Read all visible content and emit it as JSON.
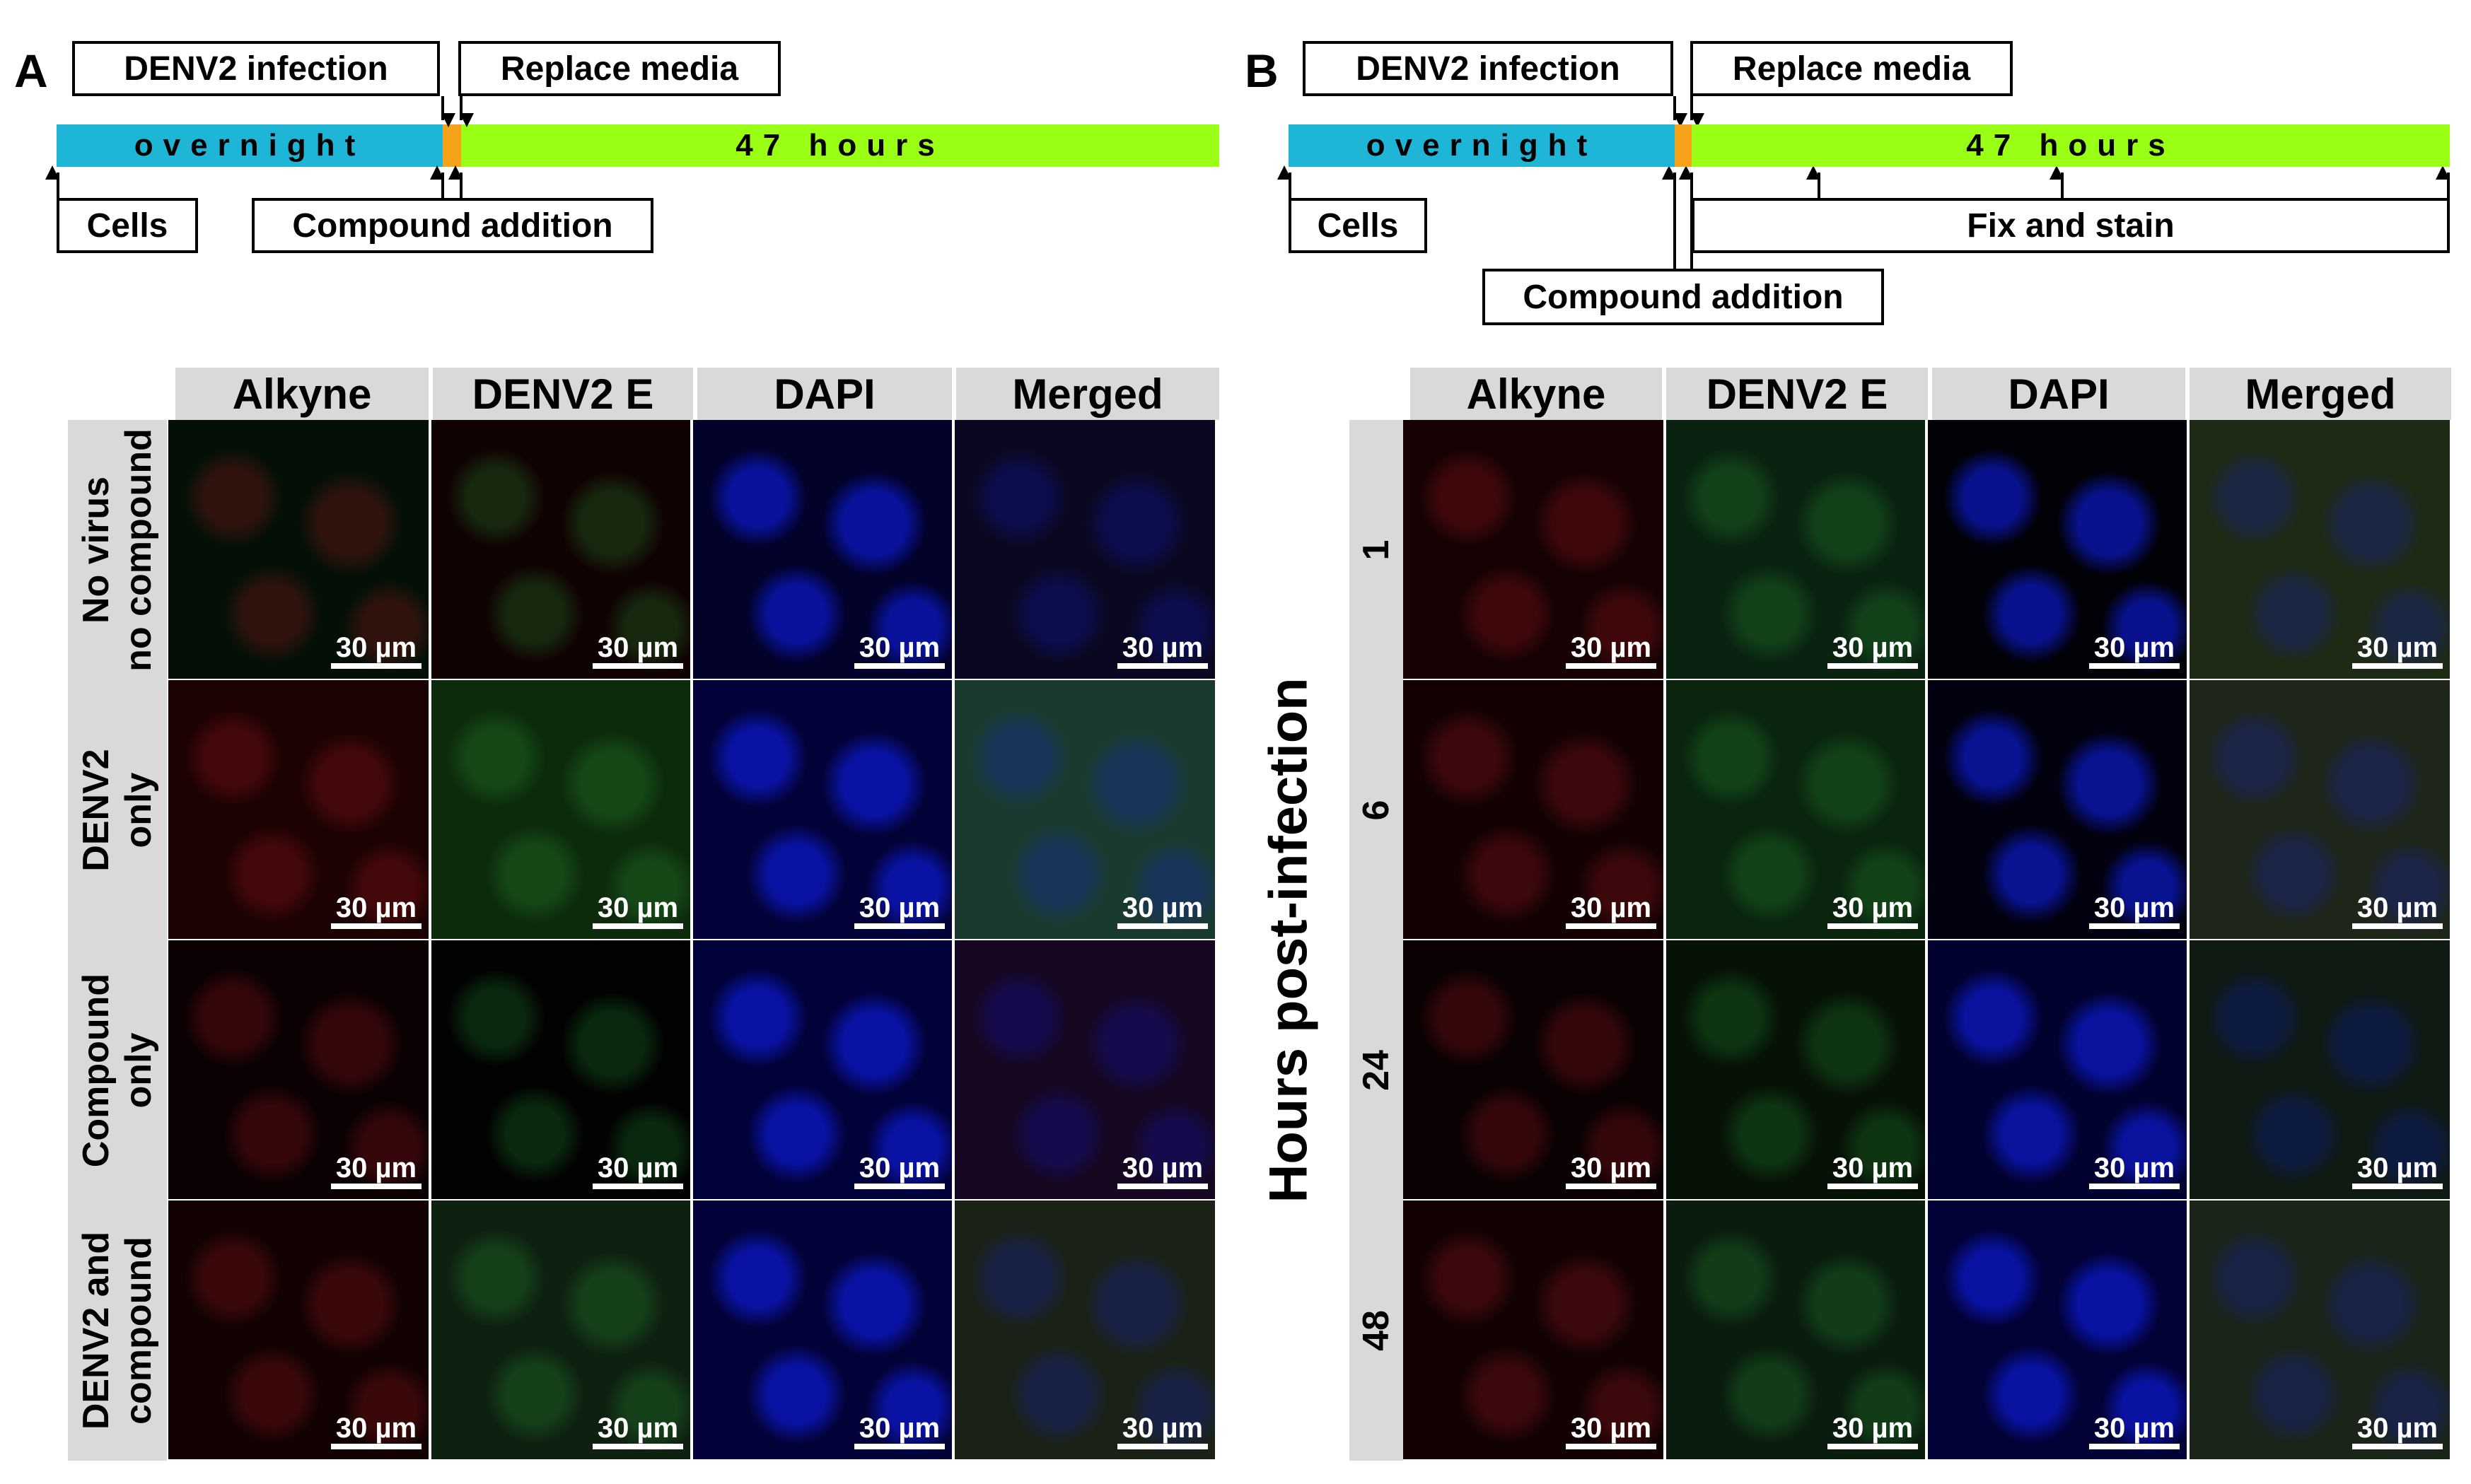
{
  "panel_a": {
    "letter": "A",
    "timeline": {
      "top_labels": [
        "DENV2 infection",
        "Replace media"
      ],
      "bottom_labels": [
        "Cells",
        "Compound addition"
      ],
      "bar_segments": [
        {
          "text": "overnight",
          "color": "#1fb5d6"
        },
        {
          "text": "",
          "color": "#f7a21b"
        },
        {
          "text": "47 hours",
          "color": "#99ff14"
        }
      ]
    },
    "column_headers": [
      "Alkyne",
      "DENV2 E",
      "DAPI",
      "Merged"
    ],
    "row_headers": [
      "No virus\nno compound",
      "DENV2\nonly",
      "Compound\nonly",
      "DENV2 and\ncompound"
    ],
    "scale_label": "30 µm"
  },
  "panel_b": {
    "letter": "B",
    "timeline": {
      "top_labels": [
        "DENV2 infection",
        "Replace media"
      ],
      "bottom_labels": [
        "Cells",
        "Fix and stain",
        "Compound addition"
      ],
      "bar_segments": [
        {
          "text": "overnight",
          "color": "#1fb5d6"
        },
        {
          "text": "",
          "color": "#f7a21b"
        },
        {
          "text": "47 hours",
          "color": "#99ff14"
        }
      ]
    },
    "column_headers": [
      "Alkyne",
      "DENV2 E",
      "DAPI",
      "Merged"
    ],
    "row_axis_label": "Hours post-infection",
    "row_headers": [
      "1",
      "6",
      "24",
      "48"
    ],
    "scale_label": "30 µm"
  },
  "colors": {
    "alkyne": "#e0202a",
    "denv2e": "#2fbf3f",
    "dapi": "#1020ff",
    "header_bg": "#d9d9d9"
  }
}
